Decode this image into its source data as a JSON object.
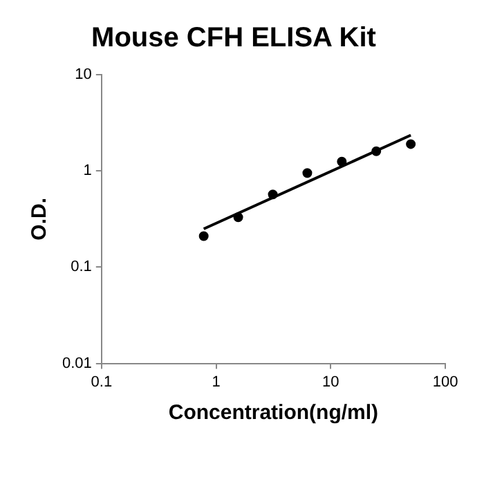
{
  "chart_data": {
    "type": "scatter",
    "title": "Mouse CFH ELISA Kit",
    "xlabel": "Concentration(ng/ml)",
    "ylabel": "O.D.",
    "log": "xy",
    "grid": false,
    "legend": false,
    "marker": "circle",
    "xlim": [
      0.1,
      100
    ],
    "xticks": [
      0.1,
      1,
      10,
      100
    ],
    "ylim": [
      0.01,
      10
    ],
    "yticks": [
      0.01,
      0.1,
      1,
      10
    ],
    "x": [
      0.78,
      1.56,
      3.125,
      6.25,
      12.5,
      25,
      50
    ],
    "series": [
      {
        "color": "#000000",
        "values": [
          0.21,
          0.33,
          0.57,
          0.95,
          1.25,
          1.6,
          1.9
        ]
      },
      {
        "type": "line",
        "color": "#000000",
        "marker": "none",
        "x": [
          0.78,
          50
        ],
        "values": [
          0.25,
          2.35
        ]
      }
    ]
  }
}
